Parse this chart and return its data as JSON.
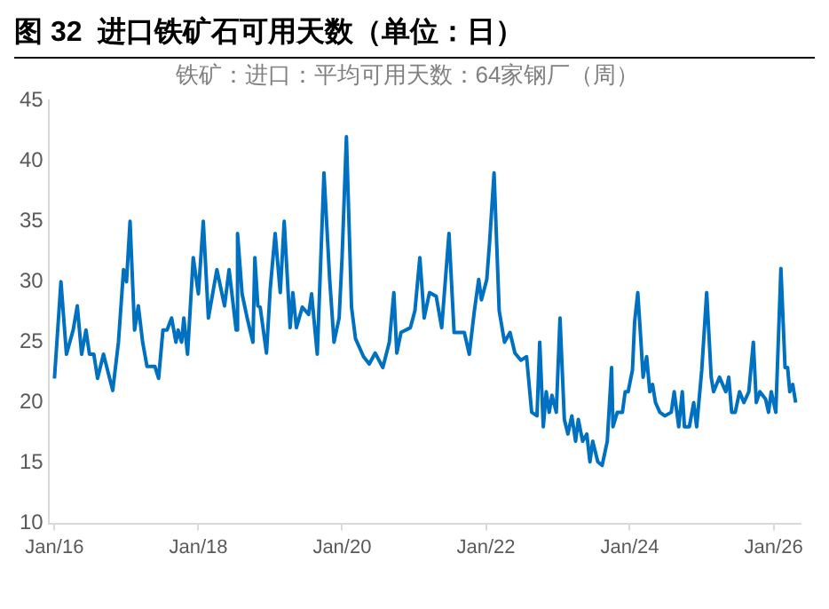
{
  "chart_data": {
    "type": "line",
    "title": "图 32  进口铁矿石可用天数（单位：日）",
    "subtitle": "铁矿：进口：平均可用天数：64家钢厂（周）",
    "x": [
      "2016-01-01",
      "2016-02-03",
      "2016-03-02",
      "2016-04-05",
      "2016-04-26",
      "2016-05-18",
      "2016-06-09",
      "2016-06-27",
      "2016-07-19",
      "2016-08-07",
      "2016-09-06",
      "2016-10-23",
      "2016-11-21",
      "2016-12-17",
      "2017-01-01",
      "2017-01-19",
      "2017-02-11",
      "2017-03-02",
      "2017-03-24",
      "2017-04-15",
      "2017-05-25",
      "2017-06-13",
      "2017-07-05",
      "2017-07-26",
      "2017-08-18",
      "2017-09-09",
      "2017-09-20",
      "2017-10-08",
      "2017-10-19",
      "2017-11-07",
      "2017-12-06",
      "2018-01-01",
      "2018-01-26",
      "2018-02-21",
      "2018-04-05",
      "2018-05-14",
      "2018-06-06",
      "2018-07-12",
      "2018-07-19",
      "2018-08-11",
      "2018-09-06",
      "2018-10-05",
      "2018-10-15",
      "2018-10-30",
      "2018-11-11",
      "2018-12-13",
      "2019-01-01",
      "2019-01-26",
      "2019-02-21",
      "2019-03-13",
      "2019-04-12",
      "2019-04-26",
      "2019-05-14",
      "2019-06-13",
      "2019-07-15",
      "2019-07-30",
      "2019-08-28",
      "2019-10-01",
      "2019-10-30",
      "2019-11-21",
      "2019-12-17",
      "2020-01-01",
      "2020-01-23",
      "2020-02-18",
      "2020-03-09",
      "2020-04-19",
      "2020-05-18",
      "2020-06-17",
      "2020-07-26",
      "2020-08-28",
      "2020-09-20",
      "2020-10-05",
      "2020-10-26",
      "2020-12-13",
      "2021-01-05",
      "2021-01-30",
      "2021-02-21",
      "2021-03-20",
      "2021-04-23",
      "2021-05-21",
      "2021-06-27",
      "2021-07-23",
      "2021-09-13",
      "2021-10-08",
      "2021-11-03",
      "2021-11-25",
      "2021-12-09",
      "2022-01-05",
      "2022-01-19",
      "2022-02-11",
      "2022-03-09",
      "2022-04-05",
      "2022-05-03",
      "2022-05-28",
      "2022-06-27",
      "2022-07-26",
      "2022-08-21",
      "2022-09-17",
      "2022-10-01",
      "2022-10-19",
      "2022-11-03",
      "2022-11-18",
      "2022-12-02",
      "2022-12-24",
      "2023-01-12",
      "2023-02-03",
      "2023-02-21",
      "2023-03-13",
      "2023-04-01",
      "2023-04-15",
      "2023-05-07",
      "2023-05-28",
      "2023-06-13",
      "2023-06-27",
      "2023-07-23",
      "2023-08-14",
      "2023-09-09",
      "2023-10-01",
      "2023-10-08",
      "2023-10-30",
      "2023-11-25",
      "2023-12-09",
      "2023-12-24",
      "2024-01-15",
      "2024-01-26",
      "2024-02-11",
      "2024-02-25",
      "2024-03-09",
      "2024-03-27",
      "2024-04-12",
      "2024-04-26",
      "2024-05-11",
      "2024-06-02",
      "2024-06-27",
      "2024-07-30",
      "2024-08-14",
      "2024-09-06",
      "2024-09-24",
      "2024-10-05",
      "2024-10-30",
      "2024-11-21",
      "2024-12-06",
      "2025-01-01",
      "2025-01-26",
      "2025-02-18",
      "2025-03-02",
      "2025-04-01",
      "2025-05-03",
      "2025-05-18",
      "2025-06-02",
      "2025-06-20",
      "2025-07-12",
      "2025-08-03",
      "2025-08-28",
      "2025-09-20",
      "2025-10-05",
      "2025-10-23",
      "2025-11-21",
      "2025-12-06",
      "2025-12-20",
      "2026-01-12",
      "2026-02-07",
      "2026-02-28",
      "2026-03-13",
      "2026-03-24",
      "2026-04-08",
      "2026-04-23"
    ],
    "series": [
      {
        "color": "#0070c0",
        "values": [
          22,
          30,
          24,
          26,
          28,
          24,
          26,
          24,
          24,
          22,
          24,
          21,
          25,
          31,
          30,
          35,
          26,
          28,
          25,
          23,
          23,
          22,
          26,
          26,
          27,
          25,
          26,
          25,
          27,
          24,
          32,
          29,
          35,
          27,
          31,
          28,
          31,
          26,
          34,
          29,
          27,
          25,
          32,
          28,
          27.9,
          24.1,
          29.4,
          34,
          29.1,
          35,
          26.2,
          29.1,
          26.2,
          27.9,
          27.3,
          29,
          24,
          39,
          30.2,
          25,
          27,
          32,
          42,
          27.9,
          25.3,
          23.8,
          23.2,
          24.1,
          22.9,
          25,
          29.1,
          24.1,
          25.8,
          26.2,
          27.6,
          32,
          27,
          29.1,
          28.8,
          26.2,
          34,
          25.8,
          25.8,
          24,
          27.6,
          30.2,
          28.5,
          30.2,
          33.2,
          39,
          27.6,
          25,
          25.8,
          24.1,
          23.5,
          23.8,
          19.2,
          18.9,
          25,
          18,
          20.9,
          19.2,
          20.6,
          19.2,
          27,
          18.6,
          17.4,
          18.9,
          16.8,
          18.6,
          16.8,
          17.4,
          15.1,
          16.8,
          15.1,
          14.8,
          16.8,
          22.9,
          18,
          19.2,
          19.2,
          20.9,
          20.9,
          22.7,
          26.7,
          29.1,
          25.6,
          22.1,
          23.8,
          20.9,
          21.5,
          20,
          19.2,
          18.9,
          19.2,
          20.9,
          18,
          20.9,
          18,
          18,
          20,
          18,
          22.7,
          29.1,
          22.1,
          20.9,
          22.1,
          20.9,
          22.1,
          19.2,
          19.2,
          20.9,
          20,
          20.9,
          25,
          20,
          20.9,
          20.3,
          19.2,
          20.9,
          19.2,
          31.1,
          22.9,
          22.9,
          20.9,
          21.5,
          20
        ]
      }
    ],
    "xlim": [
      "2015-12-02",
      "2026-05-18"
    ],
    "xticks": [
      {
        "value": "2016-01-01",
        "label": "Jan/16"
      },
      {
        "value": "2018-01-01",
        "label": "Jan/18"
      },
      {
        "value": "2020-01-01",
        "label": "Jan/20"
      },
      {
        "value": "2022-01-01",
        "label": "Jan/22"
      },
      {
        "value": "2024-01-01",
        "label": "Jan/24"
      },
      {
        "value": "2026-01-01",
        "label": "Jan/26"
      }
    ],
    "ylim": [
      10,
      45
    ],
    "yticks": [
      10,
      15,
      20,
      25,
      30,
      35,
      40,
      45
    ],
    "grid": false,
    "legend": false,
    "marker": "none",
    "line_style": "solid"
  }
}
